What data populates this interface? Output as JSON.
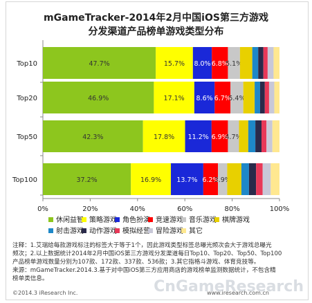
{
  "title_line1": "mGameTracker-2014年2月中国iOS第三方游戏",
  "title_line2": "分发渠道产品榜单游戏类型分布",
  "colors": [
    "#8dc61e",
    "#ffff00",
    "#1a28d8",
    "#ff0000",
    "#c8c8c8",
    "#e8d000",
    "#1e88c8",
    "#2a2a4a",
    "#e83858",
    "#c8c8d8",
    "#ffe890"
  ],
  "chart_data": {
    "type": "bar",
    "orientation": "horizontal",
    "stacked": "percent",
    "categories": [
      "Top10",
      "Top20",
      "Top50",
      "Top100"
    ],
    "xlim": [
      0,
      100
    ],
    "xticks": [
      "0%",
      "20%",
      "40%",
      "60%",
      "80%",
      "100%"
    ],
    "series": [
      {
        "name": "休闲益智",
        "values": [
          47.7,
          46.9,
          42.3,
          37.2
        ],
        "labels": [
          "47.7%",
          "46.9%",
          "42.3%",
          "37.2%"
        ]
      },
      {
        "name": "策略游戏",
        "values": [
          15.7,
          17.1,
          17.8,
          16.9
        ],
        "labels": [
          "15.7%",
          "17.1%",
          "17.8%",
          "16.9%"
        ]
      },
      {
        "name": "角色扮演",
        "values": [
          8.0,
          8.6,
          11.2,
          13.7
        ],
        "labels": [
          "8.0%",
          "8.6%",
          "11.2%",
          "13.7%"
        ]
      },
      {
        "name": "竞速游戏",
        "values": [
          6.8,
          6.7,
          6.9,
          6.2
        ],
        "labels": [
          "6.8%",
          "6.7%",
          "6.9%",
          "6.2%"
        ]
      },
      {
        "name": "音乐游戏",
        "values": [
          5.1,
          5.4,
          4.7,
          3.9
        ],
        "labels": [
          "5.1%",
          "5.4%",
          "4.7%",
          "3.9%"
        ]
      },
      {
        "name": "棋牌游戏",
        "values": [
          5.2,
          4.8,
          3.9,
          6.0
        ],
        "labels": [
          "",
          "",
          "",
          ""
        ]
      },
      {
        "name": "射击游戏",
        "values": [
          2.5,
          2.3,
          3.0,
          3.2
        ],
        "labels": [
          "",
          "",
          "",
          ""
        ]
      },
      {
        "name": "动作游戏",
        "values": [
          2.2,
          2.0,
          2.6,
          3.0
        ],
        "labels": [
          "",
          "",
          "",
          ""
        ]
      },
      {
        "name": "模拟经营",
        "values": [
          1.8,
          1.8,
          2.1,
          2.8
        ],
        "labels": [
          "",
          "",
          "",
          ""
        ]
      },
      {
        "name": "冒险游戏",
        "values": [
          2.5,
          2.2,
          2.5,
          3.4
        ],
        "labels": [
          "",
          "",
          "",
          ""
        ]
      },
      {
        "name": "其它",
        "values": [
          2.5,
          2.2,
          3.0,
          3.7
        ],
        "labels": [
          "",
          "",
          "",
          ""
        ]
      }
    ]
  },
  "notes": [
    "注释：1.艾瑞给每款游戏标注的标签大于等于1个，因此游戏类型标签总曝光频次会大于游戏总曝光",
    "频次；2.以上数据统计2014年2月中国iOS第三方游戏分发渠道每日Top10、Top20、Top50、Top100",
    "产品榜单游戏数量分别为107款、172款、337款、536款；3.其它指格斗游戏、体育竞技等。",
    "来源：mGameTracker.2014.3.基于对中国iOS第三方应用商店的游戏榜单监测数据统计，不包含精",
    "榜单类信息。"
  ],
  "footer_left": "©2014.3 iResearch Inc.",
  "footer_right": "www.iresearch.com.cn",
  "watermark": "CnGameResearch"
}
